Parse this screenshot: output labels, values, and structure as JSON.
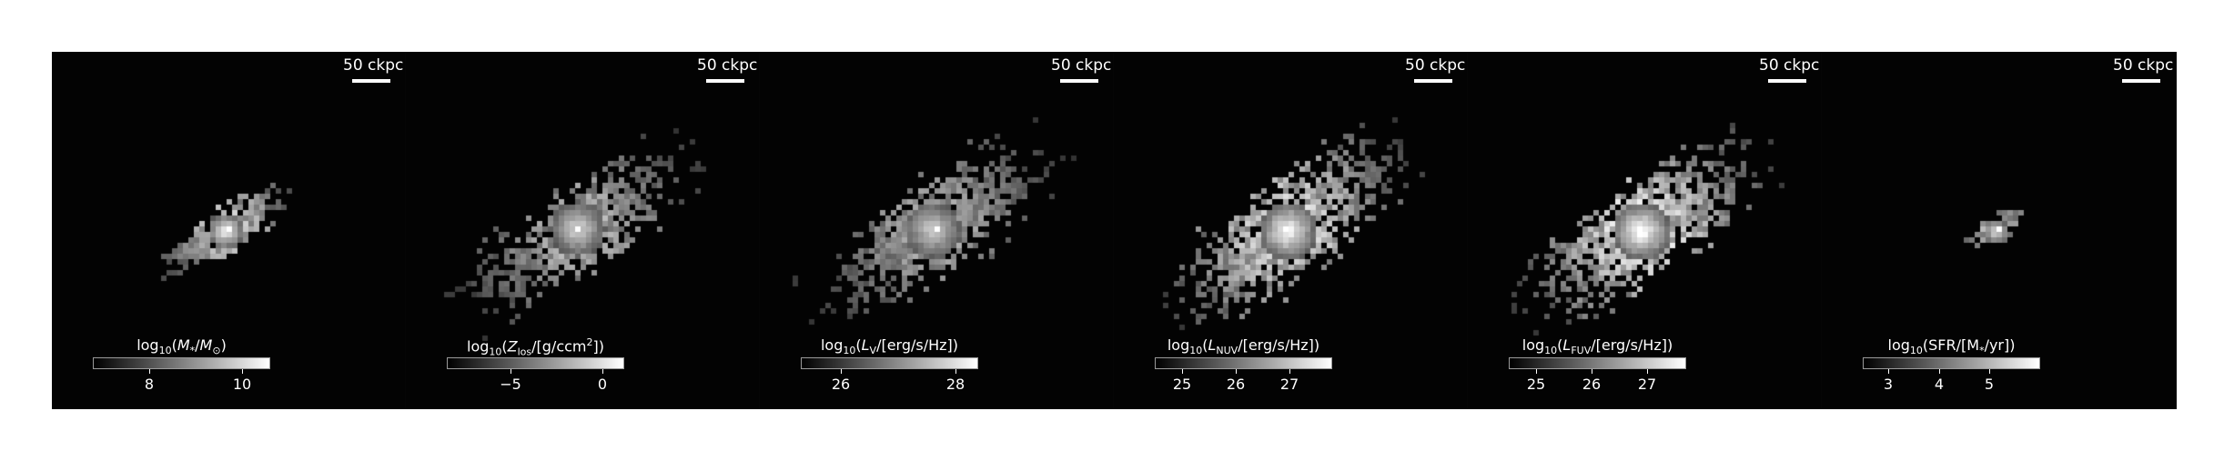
{
  "figure": {
    "panels": [
      {
        "id": "stellar-mass",
        "scale_label": "50 ckpc",
        "cbar_label_html": "log<sub>10</sub>(<i>M</i><sub>*</sub>/<i>M</i><sub>⊙</sub>)",
        "ticks": [
          {
            "value": 8,
            "label": "8"
          },
          {
            "value": 10,
            "label": "10"
          }
        ],
        "cbar_range": [
          6.8,
          10.6
        ],
        "blob": {
          "spread": 0.55,
          "intensity": 0.9,
          "count": 260
        }
      },
      {
        "id": "metal-column",
        "scale_label": "50 ckpc",
        "cbar_label_html": "log<sub>10</sub>(<i>Z</i><sub>los</sub>/[g/ccm<sup>2</sup>])",
        "ticks": [
          {
            "value": -5,
            "label": "−5"
          },
          {
            "value": 0,
            "label": "0"
          }
        ],
        "cbar_range": [
          -8.5,
          1.2
        ],
        "blob": {
          "spread": 1.0,
          "intensity": 0.75,
          "count": 650
        }
      },
      {
        "id": "lum-v",
        "scale_label": "50 ckpc",
        "cbar_label_html": "log<sub>10</sub>(<i>L</i><sub>V</sub>/[erg/s/Hz])",
        "ticks": [
          {
            "value": 26,
            "label": "26"
          },
          {
            "value": 28,
            "label": "28"
          }
        ],
        "cbar_range": [
          25.3,
          28.4
        ],
        "blob": {
          "spread": 1.05,
          "intensity": 0.7,
          "count": 700
        }
      },
      {
        "id": "lum-nuv",
        "scale_label": "50 ckpc",
        "cbar_label_html": "log<sub>10</sub>(<i>L</i><sub>NUV</sub>/[erg/s/Hz])",
        "ticks": [
          {
            "value": 25,
            "label": "25"
          },
          {
            "value": 26,
            "label": "26"
          },
          {
            "value": 27,
            "label": "27"
          }
        ],
        "cbar_range": [
          24.5,
          27.8
        ],
        "blob": {
          "spread": 1.1,
          "intensity": 0.95,
          "count": 760
        }
      },
      {
        "id": "lum-fuv",
        "scale_label": "50 ckpc",
        "cbar_label_html": "log<sub>10</sub>(<i>L</i><sub>FUV</sub>/[erg/s/Hz])",
        "ticks": [
          {
            "value": 25,
            "label": "25"
          },
          {
            "value": 26,
            "label": "26"
          },
          {
            "value": 27,
            "label": "27"
          }
        ],
        "cbar_range": [
          24.5,
          27.7
        ],
        "blob": {
          "spread": 1.1,
          "intensity": 1.0,
          "count": 780
        }
      },
      {
        "id": "sfr",
        "scale_label": "50 ckpc",
        "cbar_label_html": "log<sub>10</sub>(SFR/[M<sub>*</sub>/yr])",
        "ticks": [
          {
            "value": 3,
            "label": "3"
          },
          {
            "value": 4,
            "label": "4"
          },
          {
            "value": 5,
            "label": "5"
          }
        ],
        "cbar_range": [
          2.5,
          6.0
        ],
        "blob": {
          "spread": 0.3,
          "intensity": 0.8,
          "count": 70
        }
      }
    ]
  },
  "colors": {
    "background": "#000000",
    "text": "#ffffff",
    "page": "#ffffff"
  }
}
